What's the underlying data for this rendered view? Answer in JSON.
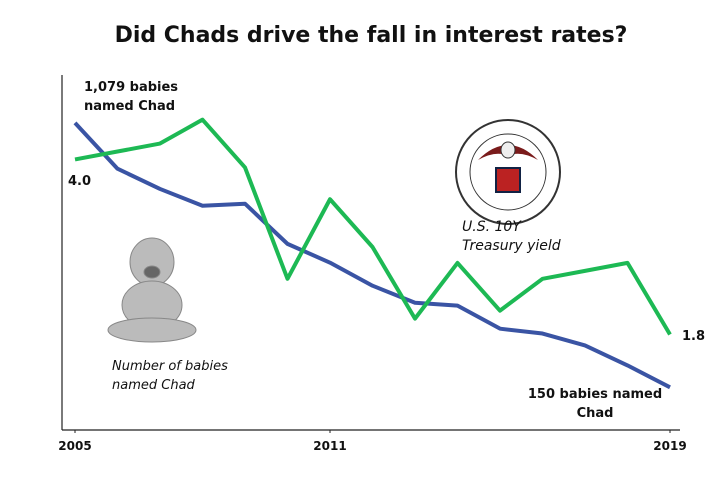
{
  "chart_data": {
    "type": "line",
    "title": "Did Chads drive the fall in interest rates?",
    "x": [
      2005,
      2006,
      2007,
      2008,
      2009,
      2010,
      2011,
      2012,
      2013,
      2014,
      2015,
      2016,
      2017,
      2018,
      2019
    ],
    "xlim": [
      2005,
      2019
    ],
    "xticks": [
      2005,
      2011,
      2019
    ],
    "ylim": [
      0,
      1300
    ],
    "y2lim": [
      0.6,
      5.25
    ],
    "series": [
      {
        "name": "Number of babies named Chad",
        "color": "#3a54a4",
        "values": [
          1079,
          918,
          847,
          788,
          795,
          654,
          588,
          507,
          447,
          437,
          356,
          339,
          297,
          227,
          150
        ],
        "value_labels": [
          "1,079 babies named Chad",
          null,
          null,
          null,
          null,
          null,
          null,
          null,
          null,
          null,
          null,
          null,
          null,
          null,
          "150 babies named Chad"
        ]
      },
      {
        "name": "U.S. 10Y Treasury yield",
        "color": "#1db954",
        "axis": "y2",
        "values": [
          4.0,
          4.1,
          4.2,
          4.5,
          3.9,
          2.5,
          3.5,
          2.9,
          2.0,
          2.7,
          2.1,
          2.5,
          2.6,
          2.7,
          1.8
        ],
        "value_labels": [
          "4.0",
          null,
          null,
          null,
          null,
          null,
          null,
          null,
          null,
          null,
          null,
          null,
          null,
          null,
          "1.8"
        ]
      }
    ]
  }
}
